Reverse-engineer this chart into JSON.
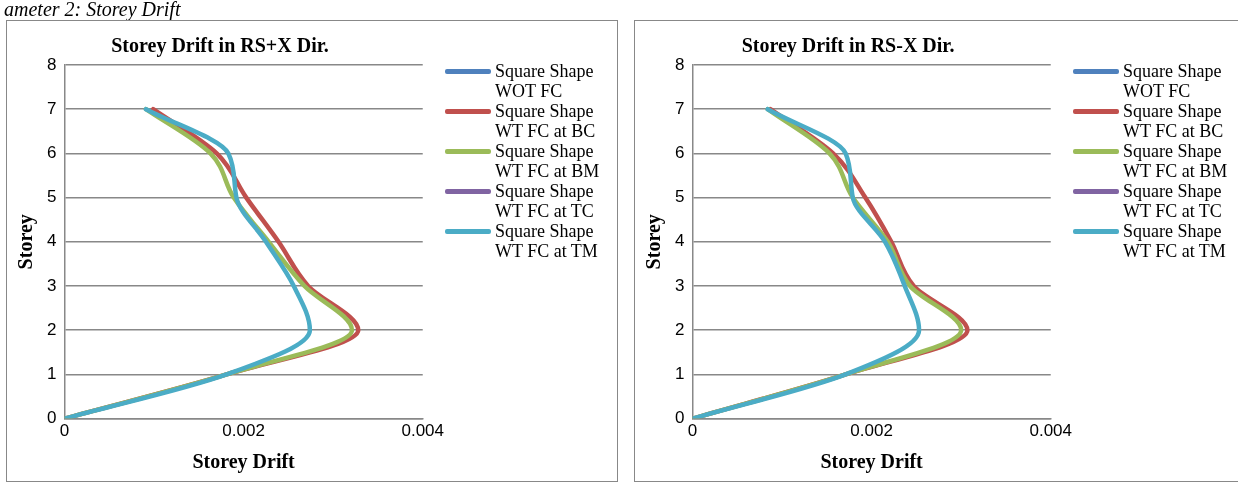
{
  "chart_data": [
    {
      "type": "line",
      "title": "Storey Drift in RS+X Dir.",
      "xlabel": "Storey Drift",
      "ylabel": "Storey",
      "annotations": [
        "ameter 2: Storey Drift"
      ],
      "xlim": [
        0,
        0.004
      ],
      "xticks": [
        0,
        0.002,
        0.004
      ],
      "ylim": [
        0,
        8
      ],
      "yticks": [
        0,
        1,
        2,
        3,
        4,
        5,
        6,
        7,
        8
      ],
      "grid": "y",
      "legend": "right",
      "marker": "none",
      "series": [
        {
          "name": "Square Shape WOT FC",
          "color": "#4f81bd",
          "x": [
            null,
            null,
            null,
            null,
            null,
            null,
            null,
            null
          ],
          "values": [
            null,
            null,
            null,
            null,
            null,
            null,
            null,
            null
          ]
        },
        {
          "name": "Square Shape WT FC at BC",
          "color": "#c0504d",
          "x": [
            0,
            0.00181,
            0.00328,
            0.00272,
            0.00239,
            0.00203,
            0.0017,
            0.00099
          ],
          "values": [
            0,
            1,
            2,
            3,
            4,
            5,
            6,
            7
          ]
        },
        {
          "name": "Square Shape WT FC at BM",
          "color": "#9bbb59",
          "x": [
            0,
            0.00181,
            0.00321,
            0.00268,
            0.00228,
            0.00189,
            0.00163,
            0.00091
          ],
          "values": [
            0,
            1,
            2,
            3,
            4,
            5,
            6,
            7
          ]
        },
        {
          "name": "Square Shape WT FC at TC",
          "color": "#8064a2",
          "x": [
            null,
            null,
            null,
            null,
            null,
            null,
            null,
            null
          ],
          "values": [
            null,
            null,
            null,
            null,
            null,
            null,
            null,
            null
          ]
        },
        {
          "name": "Square Shape WT FC at TM",
          "color": "#4bacc6",
          "x": [
            0,
            0.00181,
            0.00274,
            0.00256,
            0.00225,
            0.00192,
            0.00183,
            0.00091
          ],
          "values": [
            0,
            1,
            2,
            3,
            4,
            5,
            6,
            7
          ]
        }
      ]
    },
    {
      "type": "line",
      "title": "Storey Drift in RS-X Dir.",
      "xlabel": "Storey Drift",
      "ylabel": "Storey",
      "xlim": [
        0,
        0.004
      ],
      "xticks": [
        0,
        0.002,
        0.004
      ],
      "ylim": [
        0,
        8
      ],
      "yticks": [
        0,
        1,
        2,
        3,
        4,
        5,
        6,
        7,
        8
      ],
      "grid": "y",
      "legend": "right",
      "marker": "none",
      "series": [
        {
          "name": "Square Shape WOT FC",
          "color": "#4f81bd",
          "x": [
            null,
            null,
            null,
            null,
            null,
            null,
            null,
            null
          ],
          "values": [
            null,
            null,
            null,
            null,
            null,
            null,
            null,
            null
          ]
        },
        {
          "name": "Square Shape WT FC at BC",
          "color": "#c0504d",
          "x": [
            0,
            0.00171,
            0.00307,
            0.00247,
            0.00222,
            0.00193,
            0.00157,
            0.00087
          ],
          "values": [
            0,
            1,
            2,
            3,
            4,
            5,
            6,
            7
          ]
        },
        {
          "name": "Square Shape WT FC at BM",
          "color": "#9bbb59",
          "x": [
            0,
            0.00171,
            0.003,
            0.00243,
            0.00218,
            0.00179,
            0.00153,
            0.00084
          ],
          "values": [
            0,
            1,
            2,
            3,
            4,
            5,
            6,
            7
          ]
        },
        {
          "name": "Square Shape WT FC at TC",
          "color": "#8064a2",
          "x": [
            null,
            null,
            null,
            null,
            null,
            null,
            null,
            null
          ],
          "values": [
            null,
            null,
            null,
            null,
            null,
            null,
            null,
            null
          ]
        },
        {
          "name": "Square Shape WT FC at TM",
          "color": "#4bacc6",
          "x": [
            0,
            0.00171,
            0.00253,
            0.00237,
            0.00215,
            0.00179,
            0.00171,
            0.00084
          ],
          "values": [
            0,
            1,
            2,
            3,
            4,
            5,
            6,
            7
          ]
        }
      ]
    }
  ]
}
